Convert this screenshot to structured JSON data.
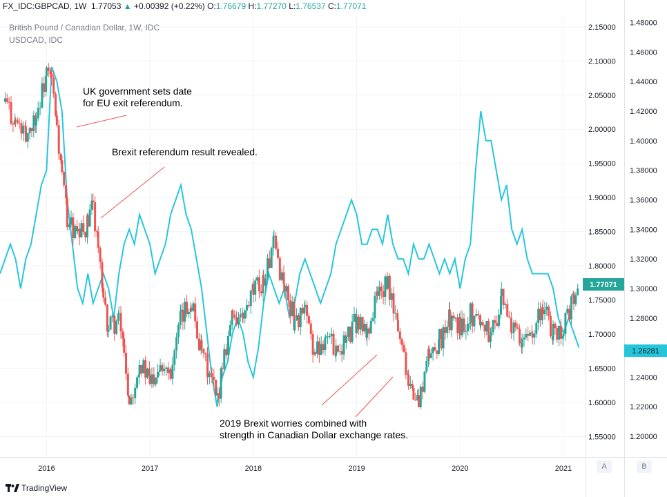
{
  "header": {
    "symbol": "FX_IDC:GBPCAD, 1W",
    "last": "1.77053",
    "change": "+0.00392 (+0.22%)",
    "o_label": "O:",
    "o_value": "1.76679",
    "h_label": "H:",
    "h_value": "1.77270",
    "l_label": "L:",
    "l_value": "1.76537",
    "c_label": "C:",
    "c_value": "1.77071"
  },
  "legend": {
    "main": "British Pound / Canadian Dollar, 1W, IDC",
    "compare": "USDCAD, IDC"
  },
  "annotations": [
    {
      "text": "UK government sets date\nfor EU exit referendum."
    },
    {
      "text": "Brexit referendum result revealed."
    },
    {
      "text": "2019 Brexit worries combined with\nstrength in Canadian Dollar exchange rates."
    }
  ],
  "footer": {
    "brand": "TradingView"
  },
  "scale_buttons": {
    "a": "A",
    "b": "B"
  },
  "colors": {
    "up": "#26a69a",
    "down": "#ef5350",
    "compare": "#26c6da",
    "grid": "#f0f3fa"
  },
  "chart_data": {
    "type": "line",
    "x_ticks": [
      "2016",
      "2017",
      "2018",
      "2019",
      "2020",
      "2021"
    ],
    "y_ticks": [
      "2.15000",
      "2.10000",
      "2.05000",
      "2.00000",
      "1.95000",
      "1.90000",
      "1.85000",
      "1.80000",
      "1.75000",
      "1.70000",
      "1.65000",
      "1.60000",
      "1.55000"
    ],
    "y2_ticks": [
      "1.48000",
      "1.46000",
      "1.44000",
      "1.42000",
      "1.40000",
      "1.38000",
      "1.36000",
      "1.34000",
      "1.32000",
      "1.30000",
      "1.28000",
      "1.26000",
      "1.24000",
      "1.22000",
      "1.20000"
    ],
    "ylim": [
      1.52,
      2.165
    ],
    "y2lim": [
      1.186,
      1.484
    ],
    "xlim": [
      2015.55,
      2021.2
    ],
    "last_value_label": "1.77071",
    "compare_last_value_label": "1.26281",
    "series": [
      {
        "name": "British Pound / Canadian Dollar, 1W, IDC",
        "style": "candles",
        "x": [
          2015.6,
          2015.7,
          2015.8,
          2015.9,
          2016.0,
          2016.05,
          2016.1,
          2016.15,
          2016.2,
          2016.3,
          2016.4,
          2016.45,
          2016.5,
          2016.55,
          2016.6,
          2016.7,
          2016.75,
          2016.8,
          2016.9,
          2017.0,
          2017.1,
          2017.2,
          2017.3,
          2017.4,
          2017.5,
          2017.6,
          2017.65,
          2017.7,
          2017.8,
          2017.9,
          2018.0,
          2018.1,
          2018.2,
          2018.3,
          2018.4,
          2018.5,
          2018.6,
          2018.7,
          2018.8,
          2018.9,
          2019.0,
          2019.1,
          2019.2,
          2019.3,
          2019.4,
          2019.5,
          2019.55,
          2019.6,
          2019.7,
          2019.8,
          2019.9,
          2020.0,
          2020.1,
          2020.2,
          2020.3,
          2020.4,
          2020.5,
          2020.6,
          2020.7,
          2020.8,
          2020.9,
          2021.0,
          2021.1,
          2021.15
        ],
        "values": [
          2.04,
          2.01,
          1.99,
          2.02,
          2.08,
          2.07,
          2.0,
          1.93,
          1.87,
          1.84,
          1.86,
          1.89,
          1.83,
          1.74,
          1.71,
          1.72,
          1.68,
          1.6,
          1.66,
          1.63,
          1.66,
          1.65,
          1.72,
          1.75,
          1.67,
          1.63,
          1.6,
          1.66,
          1.73,
          1.72,
          1.76,
          1.78,
          1.83,
          1.77,
          1.72,
          1.73,
          1.67,
          1.7,
          1.68,
          1.69,
          1.72,
          1.7,
          1.76,
          1.77,
          1.71,
          1.64,
          1.61,
          1.6,
          1.67,
          1.69,
          1.72,
          1.71,
          1.73,
          1.72,
          1.7,
          1.75,
          1.71,
          1.68,
          1.71,
          1.74,
          1.7,
          1.71,
          1.75,
          1.77
        ]
      },
      {
        "name": "USDCAD, IDC",
        "style": "line",
        "axis": "right",
        "x": [
          2015.55,
          2015.65,
          2015.7,
          2015.75,
          2015.8,
          2015.85,
          2015.9,
          2015.95,
          2016.0,
          2016.05,
          2016.1,
          2016.15,
          2016.2,
          2016.25,
          2016.3,
          2016.35,
          2016.4,
          2016.45,
          2016.5,
          2016.55,
          2016.6,
          2016.65,
          2016.7,
          2016.75,
          2016.8,
          2016.85,
          2016.9,
          2016.95,
          2017.0,
          2017.05,
          2017.1,
          2017.15,
          2017.2,
          2017.25,
          2017.3,
          2017.35,
          2017.4,
          2017.45,
          2017.5,
          2017.55,
          2017.6,
          2017.65,
          2017.7,
          2017.75,
          2017.8,
          2017.85,
          2017.9,
          2017.95,
          2018.0,
          2018.05,
          2018.1,
          2018.15,
          2018.2,
          2018.25,
          2018.3,
          2018.35,
          2018.4,
          2018.45,
          2018.5,
          2018.55,
          2018.6,
          2018.65,
          2018.7,
          2018.75,
          2018.8,
          2018.85,
          2018.9,
          2018.95,
          2019.0,
          2019.05,
          2019.1,
          2019.15,
          2019.2,
          2019.25,
          2019.3,
          2019.35,
          2019.4,
          2019.45,
          2019.5,
          2019.55,
          2019.6,
          2019.65,
          2019.7,
          2019.75,
          2019.8,
          2019.85,
          2019.9,
          2019.95,
          2020.0,
          2020.05,
          2020.1,
          2020.15,
          2020.2,
          2020.25,
          2020.3,
          2020.35,
          2020.4,
          2020.45,
          2020.5,
          2020.55,
          2020.6,
          2020.65,
          2020.7,
          2020.75,
          2020.8,
          2020.85,
          2020.9,
          2020.95,
          2021.0,
          2021.05,
          2021.1,
          2021.15
        ],
        "values": [
          1.31,
          1.33,
          1.32,
          1.3,
          1.32,
          1.33,
          1.35,
          1.37,
          1.38,
          1.45,
          1.44,
          1.42,
          1.36,
          1.33,
          1.3,
          1.29,
          1.31,
          1.29,
          1.3,
          1.31,
          1.3,
          1.28,
          1.31,
          1.33,
          1.34,
          1.33,
          1.35,
          1.34,
          1.33,
          1.31,
          1.32,
          1.33,
          1.35,
          1.36,
          1.37,
          1.35,
          1.34,
          1.32,
          1.3,
          1.27,
          1.24,
          1.22,
          1.24,
          1.25,
          1.27,
          1.28,
          1.27,
          1.25,
          1.24,
          1.26,
          1.29,
          1.31,
          1.3,
          1.29,
          1.3,
          1.28,
          1.29,
          1.31,
          1.32,
          1.31,
          1.3,
          1.29,
          1.3,
          1.31,
          1.33,
          1.34,
          1.35,
          1.36,
          1.35,
          1.33,
          1.33,
          1.34,
          1.34,
          1.33,
          1.35,
          1.33,
          1.32,
          1.32,
          1.31,
          1.33,
          1.32,
          1.32,
          1.33,
          1.32,
          1.31,
          1.32,
          1.31,
          1.32,
          1.3,
          1.32,
          1.33,
          1.38,
          1.42,
          1.4,
          1.4,
          1.38,
          1.36,
          1.37,
          1.34,
          1.33,
          1.34,
          1.32,
          1.31,
          1.31,
          1.31,
          1.31,
          1.3,
          1.28,
          1.27,
          1.28,
          1.27,
          1.26
        ]
      }
    ]
  }
}
